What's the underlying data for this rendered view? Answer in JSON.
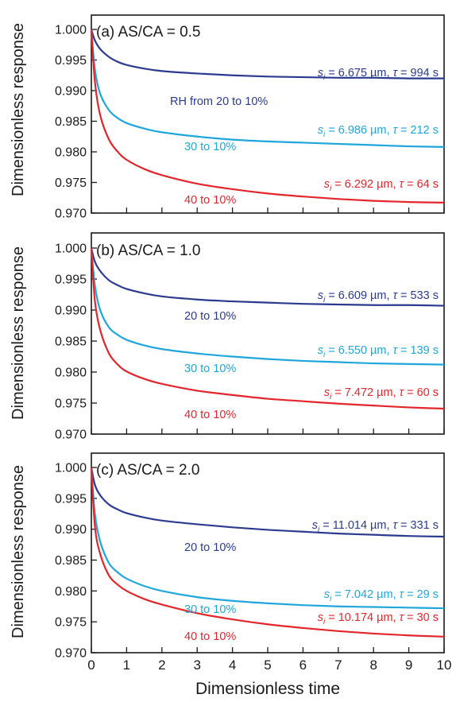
{
  "chart_data": [
    {
      "type": "line",
      "title": "(a) AS/CA = 0.5",
      "xlabel": "",
      "ylabel": "Dimensionless response",
      "xlim": [
        0,
        10
      ],
      "ylim": [
        0.97,
        1.002
      ],
      "x_ticks": [
        "0",
        "1",
        "2",
        "3",
        "4",
        "5",
        "6",
        "7",
        "8",
        "9",
        "10"
      ],
      "y_ticks": [
        "0.970",
        "0.975",
        "0.980",
        "0.985",
        "0.990",
        "0.995",
        "1.000"
      ],
      "series": [
        {
          "name": "RH from 20 to 10%",
          "color": "#2b3a8f",
          "x": [
            0,
            0.1,
            0.25,
            0.5,
            0.75,
            1,
            1.5,
            2,
            3,
            4,
            5,
            6,
            7,
            8,
            9,
            10
          ],
          "y": [
            1.0,
            0.9982,
            0.9968,
            0.9955,
            0.9947,
            0.9942,
            0.9936,
            0.9932,
            0.9928,
            0.9925,
            0.9923,
            0.9922,
            0.9921,
            0.9921,
            0.992,
            0.992
          ],
          "params": "si = 6.675 µm, τ = 994 s"
        },
        {
          "name": "30 to 10%",
          "color": "#1fa6dc",
          "x": [
            0,
            0.1,
            0.25,
            0.5,
            0.75,
            1,
            1.5,
            2,
            3,
            4,
            5,
            6,
            7,
            8,
            9,
            10
          ],
          "y": [
            1.0,
            0.9935,
            0.9895,
            0.9868,
            0.9855,
            0.9847,
            0.9838,
            0.9832,
            0.9825,
            0.982,
            0.9817,
            0.9815,
            0.9813,
            0.9811,
            0.9809,
            0.9808
          ],
          "params": "si = 6.986 µm, τ = 212 s"
        },
        {
          "name": "40 to 10%",
          "color": "#e3262b",
          "x": [
            0,
            0.1,
            0.25,
            0.5,
            0.75,
            1,
            1.5,
            2,
            3,
            4,
            5,
            6,
            7,
            8,
            9,
            10
          ],
          "y": [
            1.0,
            0.9915,
            0.986,
            0.982,
            0.98,
            0.9787,
            0.9772,
            0.9762,
            0.9748,
            0.9739,
            0.9732,
            0.9727,
            0.9723,
            0.972,
            0.9718,
            0.9717
          ],
          "params": "si = 6.292 µm, τ = 64 s"
        }
      ]
    },
    {
      "type": "line",
      "title": "(b) AS/CA = 1.0",
      "xlabel": "",
      "ylabel": "Dimensionless response",
      "xlim": [
        0,
        10
      ],
      "ylim": [
        0.97,
        1.002
      ],
      "x_ticks": [
        "0",
        "1",
        "2",
        "3",
        "4",
        "5",
        "6",
        "7",
        "8",
        "9",
        "10"
      ],
      "y_ticks": [
        "0.970",
        "0.975",
        "0.980",
        "0.985",
        "0.990",
        "0.995",
        "1.000"
      ],
      "series": [
        {
          "name": "20 to 10%",
          "color": "#2b3a8f",
          "x": [
            0,
            0.1,
            0.25,
            0.5,
            0.75,
            1,
            1.5,
            2,
            3,
            4,
            5,
            6,
            7,
            8,
            9,
            10
          ],
          "y": [
            1.0,
            0.9978,
            0.9963,
            0.9948,
            0.994,
            0.9934,
            0.9927,
            0.9922,
            0.9917,
            0.9914,
            0.9912,
            0.991,
            0.9909,
            0.9908,
            0.9908,
            0.9907
          ],
          "params": "si = 6.609 µm, τ = 533 s"
        },
        {
          "name": "30 to 10%",
          "color": "#1fa6dc",
          "x": [
            0,
            0.1,
            0.25,
            0.5,
            0.75,
            1,
            1.5,
            2,
            3,
            4,
            5,
            6,
            7,
            8,
            9,
            10
          ],
          "y": [
            1.0,
            0.994,
            0.99,
            0.9872,
            0.986,
            0.9852,
            0.9843,
            0.9837,
            0.983,
            0.9825,
            0.9821,
            0.9818,
            0.9816,
            0.9814,
            0.9813,
            0.9812
          ],
          "params": "si = 6.550 µm, τ = 139 s"
        },
        {
          "name": "40 to 10%",
          "color": "#e3262b",
          "x": [
            0,
            0.1,
            0.25,
            0.5,
            0.75,
            1,
            1.5,
            2,
            3,
            4,
            5,
            6,
            7,
            8,
            9,
            10
          ],
          "y": [
            1.0,
            0.9915,
            0.9868,
            0.983,
            0.9812,
            0.9801,
            0.9789,
            0.9781,
            0.977,
            0.9763,
            0.9757,
            0.9753,
            0.9749,
            0.9746,
            0.9743,
            0.9741
          ],
          "params": "si = 7.472 µm, τ = 60 s"
        }
      ]
    },
    {
      "type": "line",
      "title": "(c) AS/CA = 2.0",
      "xlabel": "Dimensionless time",
      "ylabel": "Dimensionless response",
      "xlim": [
        0,
        10
      ],
      "ylim": [
        0.97,
        1.002
      ],
      "x_ticks": [
        "0",
        "1",
        "2",
        "3",
        "4",
        "5",
        "6",
        "7",
        "8",
        "9",
        "10"
      ],
      "y_ticks": [
        "0.970",
        "0.975",
        "0.980",
        "0.985",
        "0.990",
        "0.995",
        "1.000"
      ],
      "series": [
        {
          "name": "20 to 10%",
          "color": "#2b3a8f",
          "x": [
            0,
            0.1,
            0.25,
            0.5,
            0.75,
            1,
            1.5,
            2,
            3,
            4,
            5,
            6,
            7,
            8,
            9,
            10
          ],
          "y": [
            1.0,
            0.9972,
            0.9955,
            0.994,
            0.9932,
            0.9926,
            0.9919,
            0.9914,
            0.9908,
            0.9903,
            0.9899,
            0.9896,
            0.9893,
            0.9891,
            0.9889,
            0.9888
          ],
          "params": "si = 11.014 µm, τ = 331 s"
        },
        {
          "name": "30 to 10%",
          "color": "#1fa6dc",
          "x": [
            0,
            0.1,
            0.25,
            0.5,
            0.75,
            1,
            1.5,
            2,
            3,
            4,
            5,
            6,
            7,
            8,
            9,
            10
          ],
          "y": [
            1.0,
            0.9925,
            0.988,
            0.9845,
            0.983,
            0.982,
            0.9808,
            0.98,
            0.979,
            0.9784,
            0.978,
            0.9777,
            0.9775,
            0.9774,
            0.9773,
            0.9772
          ],
          "params": "si = 7.042 µm, τ = 29 s"
        },
        {
          "name": "40 to 10%",
          "color": "#e3262b",
          "x": [
            0,
            0.1,
            0.25,
            0.5,
            0.75,
            1,
            1.5,
            2,
            3,
            4,
            5,
            6,
            7,
            8,
            9,
            10
          ],
          "y": [
            1.0,
            0.9905,
            0.986,
            0.9825,
            0.981,
            0.98,
            0.9787,
            0.9778,
            0.9764,
            0.9754,
            0.9746,
            0.974,
            0.9735,
            0.9731,
            0.9728,
            0.9726
          ],
          "params": "si = 10.174 µm, τ = 30 s"
        }
      ]
    }
  ],
  "labels": {
    "a": {
      "title": "(a) AS/CA = 0.5",
      "ylabel": "Dimensionless response",
      "lines": [
        {
          "name": "RH from 20 to 10%",
          "s_pre": "s",
          "s_sub": "i",
          "s_val": " = 6.675 µm, ",
          "tau_sym": "τ",
          "tau_val": " = 994 s",
          "color": "#2b3a8f"
        },
        {
          "name": "30 to 10%",
          "s_pre": "s",
          "s_sub": "i",
          "s_val": " = 6.986 µm, ",
          "tau_sym": "τ",
          "tau_val": " = 212 s",
          "color": "#1fa6dc"
        },
        {
          "name": "40 to 10%",
          "s_pre": "s",
          "s_sub": "i",
          "s_val": " = 6.292 µm, ",
          "tau_sym": "τ",
          "tau_val": " = 64 s",
          "color": "#e3262b"
        }
      ]
    },
    "b": {
      "title": "(b) AS/CA = 1.0",
      "ylabel": "Dimensionless response",
      "lines": [
        {
          "name": "20 to 10%",
          "s_pre": "s",
          "s_sub": "i",
          "s_val": " = 6.609 µm, ",
          "tau_sym": "τ",
          "tau_val": " = 533 s",
          "color": "#2b3a8f"
        },
        {
          "name": "30 to 10%",
          "s_pre": "s",
          "s_sub": "i",
          "s_val": " = 6.550 µm, ",
          "tau_sym": "τ",
          "tau_val": " = 139 s",
          "color": "#1fa6dc"
        },
        {
          "name": "40 to 10%",
          "s_pre": "s",
          "s_sub": "i",
          "s_val": " = 7.472 µm, ",
          "tau_sym": "τ",
          "tau_val": " = 60 s",
          "color": "#e3262b"
        }
      ]
    },
    "c": {
      "title": "(c) AS/CA = 2.0",
      "ylabel": "Dimensionless response",
      "xlabel": "Dimensionless time",
      "lines": [
        {
          "name": "20 to 10%",
          "s_pre": "s",
          "s_sub": "i",
          "s_val": " = 11.014 µm, ",
          "tau_sym": "τ",
          "tau_val": " = 331 s",
          "color": "#2b3a8f"
        },
        {
          "name": "30 to 10%",
          "s_pre": "s",
          "s_sub": "i",
          "s_val": " = 7.042 µm, ",
          "tau_sym": "τ",
          "tau_val": " = 29 s",
          "color": "#1fa6dc"
        },
        {
          "name": "40 to 10%",
          "s_pre": "s",
          "s_sub": "i",
          "s_val": " = 10.174 µm, ",
          "tau_sym": "τ",
          "tau_val": " = 30 s",
          "color": "#e3262b"
        }
      ]
    }
  }
}
